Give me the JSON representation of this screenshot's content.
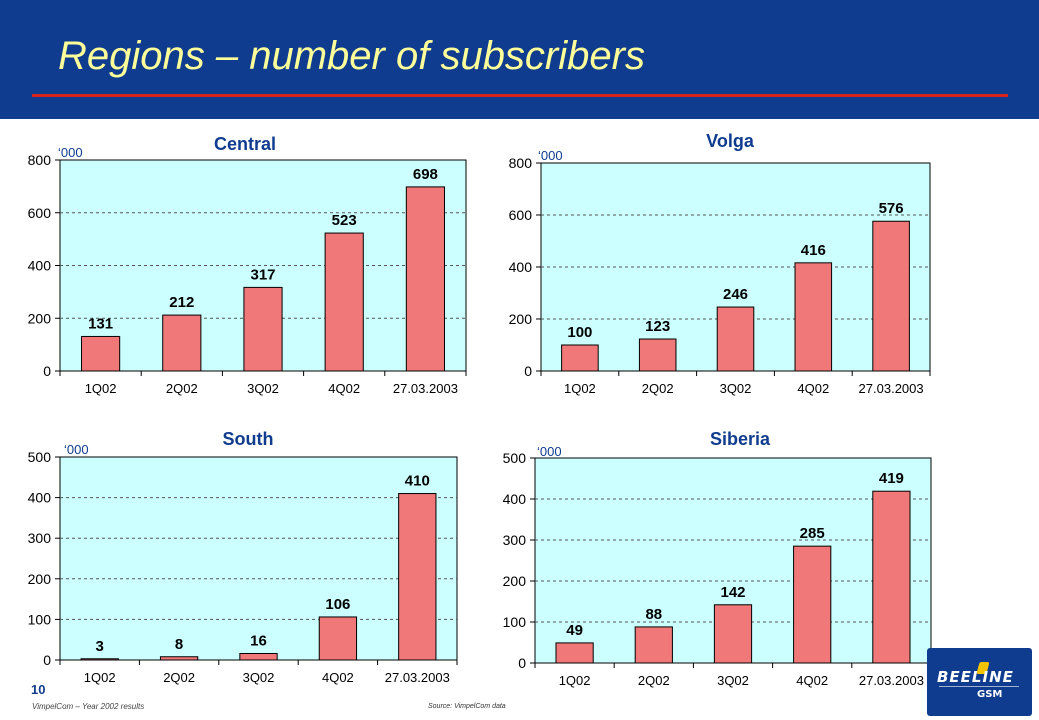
{
  "page": {
    "title": "Regions – number of subscribers",
    "page_number": "10",
    "footer_company": "VimpelCom – Year 2002 results",
    "footer_source": "Source: VimpelCom data",
    "logo_text_main": "BEELINE",
    "logo_text_sub": "GSM"
  },
  "colors": {
    "header_bg": "#0f3c8f",
    "title": "#ffff99",
    "rule": "#d9221c",
    "plot_bg": "#ccffff",
    "bar": "#f07878"
  },
  "chart_data": [
    {
      "type": "bar",
      "title": "Central",
      "unit": "‘000",
      "categories": [
        "1Q02",
        "2Q02",
        "3Q02",
        "4Q02",
        "27.03.2003"
      ],
      "values": [
        131,
        212,
        317,
        523,
        698
      ],
      "ylim": [
        0,
        800
      ],
      "yticks": [
        "0",
        "200",
        "400",
        "600",
        "800"
      ],
      "grid": true
    },
    {
      "type": "bar",
      "title": "Volga",
      "unit": "‘000",
      "categories": [
        "1Q02",
        "2Q02",
        "3Q02",
        "4Q02",
        "27.03.2003"
      ],
      "values": [
        100,
        123,
        246,
        416,
        576
      ],
      "ylim": [
        0,
        800
      ],
      "yticks": [
        "0",
        "200",
        "400",
        "600",
        "800"
      ],
      "grid": true
    },
    {
      "type": "bar",
      "title": "South",
      "unit": "‘000",
      "categories": [
        "1Q02",
        "2Q02",
        "3Q02",
        "4Q02",
        "27.03.2003"
      ],
      "values": [
        3,
        8,
        16,
        106,
        410
      ],
      "ylim": [
        0,
        500
      ],
      "yticks": [
        "0",
        "100",
        "200",
        "300",
        "400",
        "500"
      ],
      "grid": true
    },
    {
      "type": "bar",
      "title": "Siberia",
      "unit": "‘000",
      "categories": [
        "1Q02",
        "2Q02",
        "3Q02",
        "4Q02",
        "27.03.2003"
      ],
      "values": [
        49,
        88,
        142,
        285,
        419
      ],
      "ylim": [
        0,
        500
      ],
      "yticks": [
        "0",
        "100",
        "200",
        "300",
        "400",
        "500"
      ],
      "grid": true
    }
  ]
}
